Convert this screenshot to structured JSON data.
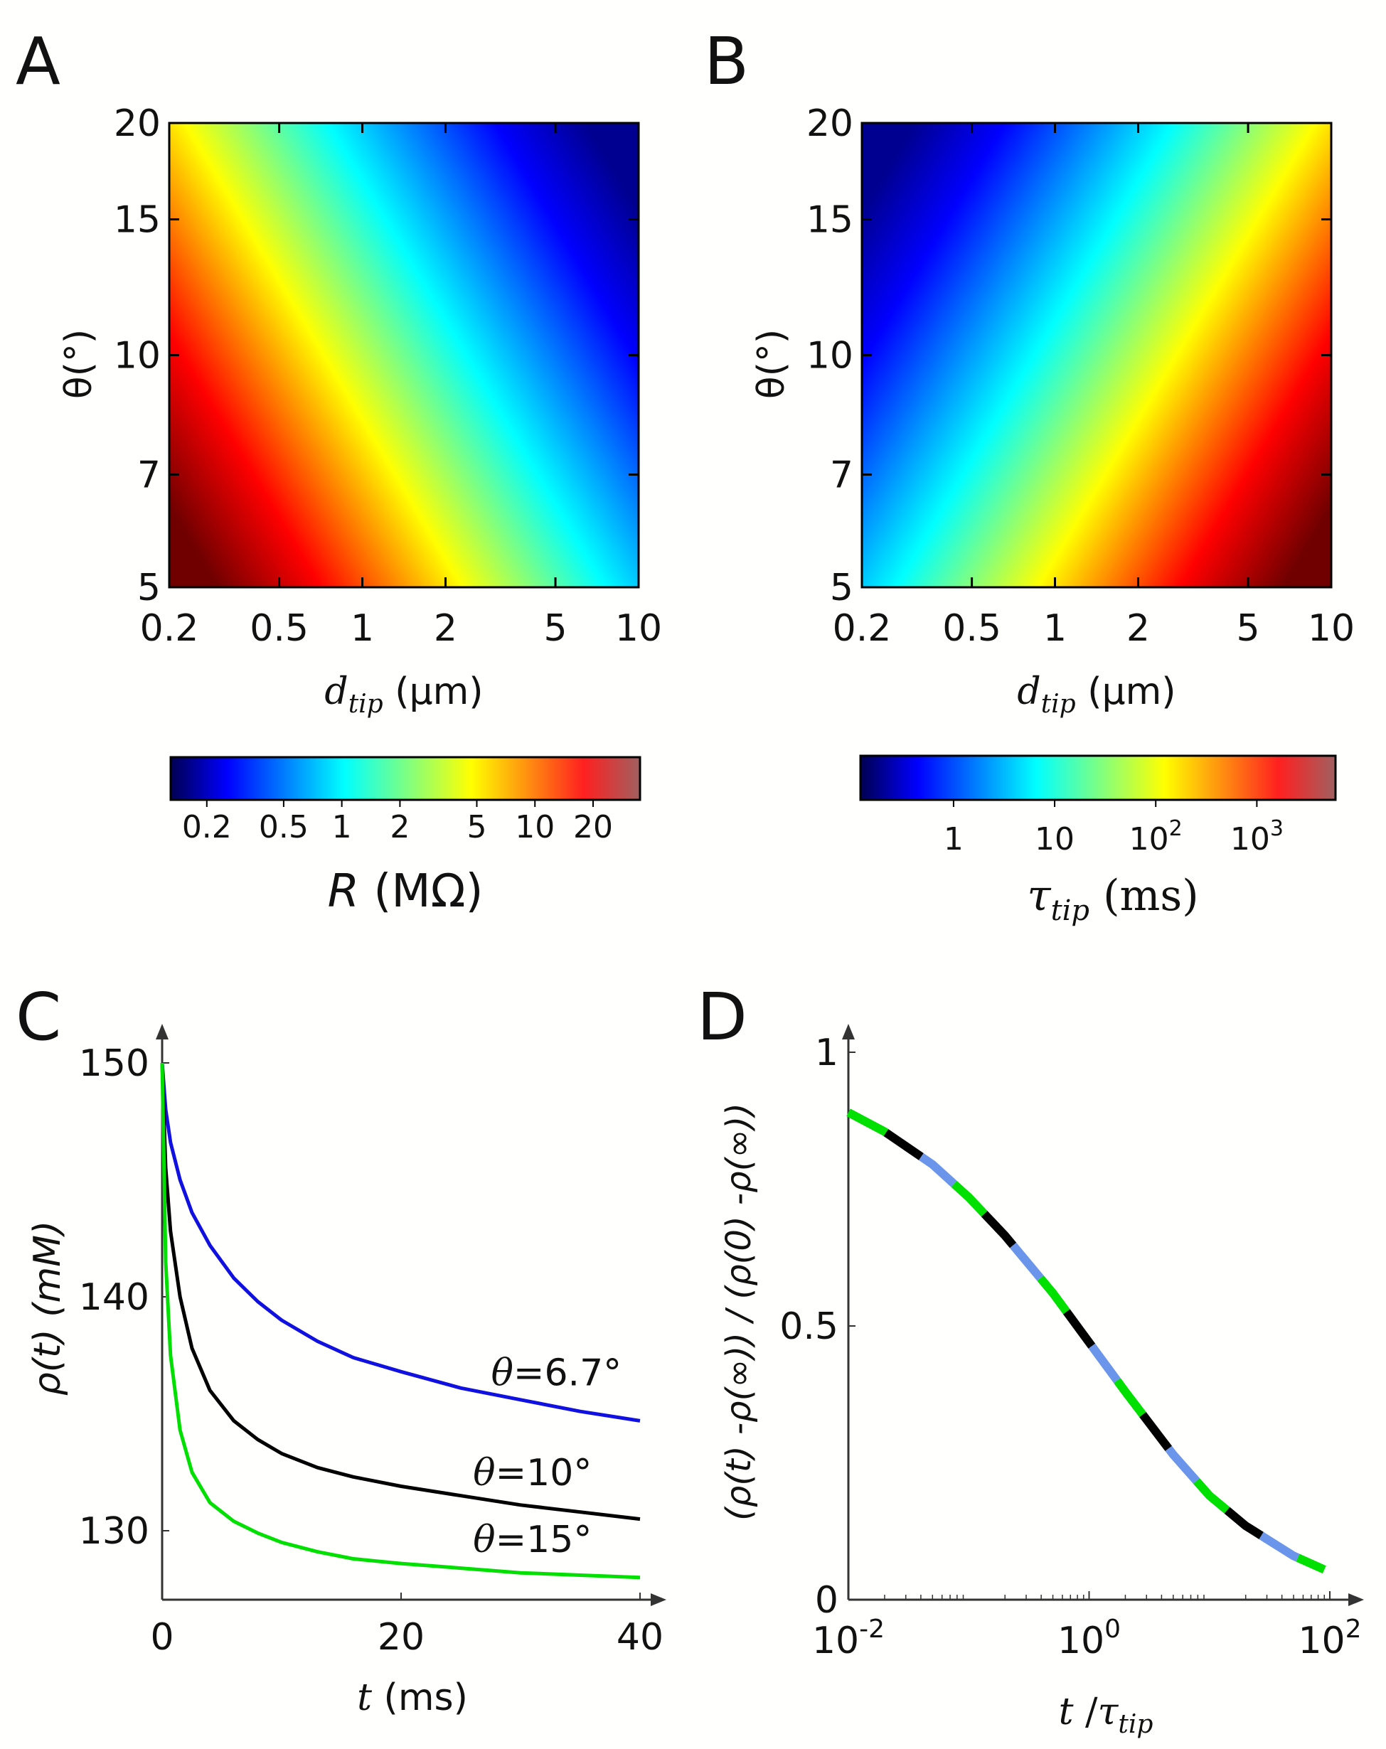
{
  "panels": {
    "A": {
      "label": "A"
    },
    "B": {
      "label": "B"
    },
    "C": {
      "label": "C"
    },
    "D": {
      "label": "D"
    }
  },
  "colormap": [
    "#000080",
    "#0000ff",
    "#00ffff",
    "#ffff00",
    "#ff0000",
    "#800000"
  ],
  "series_colors": {
    "blue": "#1010e0",
    "black": "#000000",
    "green": "#00e000",
    "lightblue": "#6b95ea"
  },
  "chart_data": [
    {
      "panel": "A",
      "type": "heatmap",
      "xlabel": {
        "main": "d",
        "sub": "tip",
        "unit": " (µm)"
      },
      "ylabel": "θ(°)",
      "x_scale": "log",
      "y_scale": "log",
      "xlim": [
        0.2,
        10
      ],
      "ylim": [
        5,
        20
      ],
      "xticks": [
        "0.2",
        "0.5",
        "1",
        "2",
        "5",
        "10"
      ],
      "xtick_values": [
        0.2,
        0.5,
        1,
        2,
        5,
        10
      ],
      "yticks": [
        "5",
        "7",
        "10",
        "15",
        "20"
      ],
      "ytick_values": [
        5,
        7,
        10,
        15,
        20
      ],
      "color_trend": "high (red) at small tip diameter and small angle, low (blue) at large tip diameter",
      "colorbar": {
        "label_main": "R",
        "label_unit": " (MΩ)",
        "scale": "log",
        "range": [
          0.13,
          35
        ],
        "ticks": [
          "0.2",
          "0.5",
          "1",
          "2",
          "5",
          "10",
          "20"
        ],
        "tick_values": [
          0.2,
          0.5,
          1,
          2,
          5,
          10,
          20
        ]
      }
    },
    {
      "panel": "B",
      "type": "heatmap",
      "xlabel": {
        "main": "d",
        "sub": "tip",
        "unit": " (µm)"
      },
      "ylabel": "θ(°)",
      "x_scale": "log",
      "y_scale": "log",
      "xlim": [
        0.2,
        10
      ],
      "ylim": [
        5,
        20
      ],
      "xticks": [
        "0.2",
        "0.5",
        "1",
        "2",
        "5",
        "10"
      ],
      "xtick_values": [
        0.2,
        0.5,
        1,
        2,
        5,
        10
      ],
      "yticks": [
        "5",
        "7",
        "10",
        "15",
        "20"
      ],
      "ytick_values": [
        5,
        7,
        10,
        15,
        20
      ],
      "color_trend": "low (blue) at small tip diameter and large angle, high (red) at large tip diameter",
      "colorbar": {
        "label_main": "τ",
        "label_sub": "tip",
        "label_unit": " (ms)",
        "scale": "log",
        "range": [
          0.12,
          6000
        ],
        "ticks": [
          {
            "base": "1",
            "exp": ""
          },
          {
            "base": "10",
            "exp": ""
          },
          {
            "base": "10",
            "exp": "2"
          },
          {
            "base": "10",
            "exp": "3"
          }
        ],
        "tick_values": [
          1,
          10,
          100,
          1000
        ]
      }
    },
    {
      "panel": "C",
      "type": "line",
      "xlabel": {
        "main": "t",
        "unit": " (ms)"
      },
      "ylabel": "ρ(t) (mM)",
      "xlim": [
        0,
        40
      ],
      "ylim": [
        127,
        151
      ],
      "xticks": [
        "0",
        "20",
        "40"
      ],
      "xtick_values": [
        0,
        20,
        40
      ],
      "yticks": [
        "130",
        "140",
        "150"
      ],
      "ytick_values": [
        130,
        140,
        150
      ],
      "series": [
        {
          "name": "θ=6.7°",
          "color": "#1010e0",
          "x": [
            0,
            0.3,
            0.7,
            1.5,
            2.5,
            4,
            6,
            8,
            10,
            13,
            16,
            20,
            25,
            30,
            35,
            40
          ],
          "y": [
            150,
            148.0,
            146.6,
            145.0,
            143.6,
            142.2,
            140.8,
            139.8,
            139.0,
            138.1,
            137.4,
            136.8,
            136.1,
            135.6,
            135.1,
            134.7
          ]
        },
        {
          "name": "θ=10°",
          "color": "#000000",
          "x": [
            0,
            0.3,
            0.7,
            1.5,
            2.5,
            4,
            6,
            8,
            10,
            13,
            16,
            20,
            25,
            30,
            35,
            40
          ],
          "y": [
            150,
            145.5,
            142.8,
            140.0,
            137.8,
            136.0,
            134.7,
            133.9,
            133.3,
            132.7,
            132.3,
            131.9,
            131.5,
            131.1,
            130.8,
            130.5
          ]
        },
        {
          "name": "θ=15°",
          "color": "#00e000",
          "x": [
            0,
            0.3,
            0.7,
            1.5,
            2.5,
            4,
            6,
            8,
            10,
            13,
            16,
            20,
            25,
            30,
            35,
            40
          ],
          "y": [
            150,
            141.5,
            137.5,
            134.3,
            132.5,
            131.2,
            130.4,
            129.9,
            129.5,
            129.1,
            128.8,
            128.6,
            128.4,
            128.2,
            128.1,
            128.0
          ]
        }
      ],
      "annotations": [
        "θ=6.7°",
        "θ=10°",
        "θ=15°"
      ]
    },
    {
      "panel": "D",
      "type": "line",
      "xlabel": {
        "main": "t",
        "slash": " /",
        "denom": "τ",
        "denom_sub": "tip"
      },
      "ylabel": "(ρ(t) -ρ(∞)) / (ρ(0) -ρ(∞))",
      "x_scale": "log",
      "xlim": [
        0.01,
        100
      ],
      "ylim": [
        0,
        1
      ],
      "xticks": [
        {
          "base": "10",
          "exp": "-2"
        },
        {
          "base": "10",
          "exp": "0"
        },
        {
          "base": "10",
          "exp": "2"
        }
      ],
      "xtick_values": [
        0.01,
        1,
        100
      ],
      "yticks": [
        "0",
        "0.5",
        "1"
      ],
      "ytick_values": [
        0,
        0.5,
        1
      ],
      "note": "three overlapping curves (green, black, light blue) drawn with alternating dashes collapse onto one master curve",
      "x": [
        0.01,
        0.02,
        0.05,
        0.1,
        0.2,
        0.5,
        1,
        2,
        5,
        10,
        20,
        50,
        90
      ],
      "y": [
        0.89,
        0.855,
        0.795,
        0.735,
        0.665,
        0.56,
        0.47,
        0.38,
        0.265,
        0.19,
        0.135,
        0.08,
        0.055
      ]
    }
  ]
}
